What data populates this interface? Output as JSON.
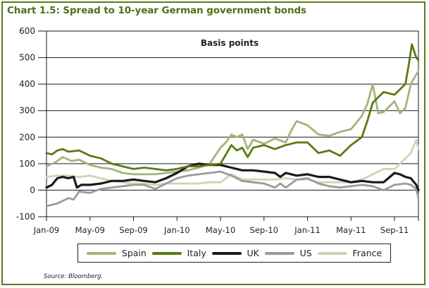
{
  "chart_data": {
    "type": "line",
    "title": "Chart 1.5: Spread to 10-year German government bonds",
    "annotation": "Basis points",
    "xlabel": "",
    "ylabel": "Basis points",
    "ylim": [
      -100,
      600
    ],
    "yticks": [
      600,
      500,
      400,
      300,
      200,
      100,
      0,
      -100
    ],
    "ytick_labels": [
      "600",
      "500",
      "400",
      "300",
      "200",
      "100",
      "0",
      "-100"
    ],
    "x_unit": "months since Jan-09",
    "xlim": [
      0,
      34.2
    ],
    "xticks": [
      0,
      4,
      8,
      12,
      16,
      20,
      24,
      28,
      32
    ],
    "xtick_labels": [
      "Jan-09",
      "May-09",
      "Sep-09",
      "Jan-10",
      "May-10",
      "Sep-10",
      "Jan-11",
      "May-11",
      "Sep-11"
    ],
    "grid": "horizontal",
    "legend_position": "bottom",
    "source": "Source: Bloomberg.",
    "series": [
      {
        "name": "Spain",
        "color": "#a3b47a",
        "x": [
          0,
          0.8,
          1.5,
          2.3,
          3,
          4,
          5,
          6,
          7,
          8,
          9,
          10,
          11,
          12,
          13,
          14,
          15,
          16,
          16.5,
          17,
          17.5,
          18,
          18.5,
          19,
          20,
          21,
          22,
          22.5,
          23,
          24,
          25,
          26,
          27,
          28,
          29,
          29.5,
          30,
          30.5,
          31,
          32,
          32.5,
          33,
          33.5,
          34.2
        ],
        "values": [
          90,
          105,
          125,
          110,
          115,
          95,
          85,
          80,
          65,
          60,
          60,
          60,
          65,
          70,
          75,
          85,
          100,
          160,
          180,
          210,
          200,
          210,
          155,
          190,
          175,
          195,
          180,
          225,
          260,
          245,
          210,
          205,
          220,
          230,
          280,
          325,
          400,
          290,
          295,
          335,
          290,
          310,
          400,
          450
        ]
      },
      {
        "name": "Italy",
        "color": "#5a7a12",
        "x": [
          0,
          0.5,
          1,
          1.5,
          2,
          3,
          4,
          5,
          6,
          7,
          8,
          9,
          10,
          11,
          12,
          13,
          14,
          15,
          16,
          17,
          17.5,
          18,
          18.5,
          19,
          20,
          21,
          22,
          23,
          24,
          25,
          26,
          27,
          28,
          29,
          29.5,
          30,
          31,
          32,
          33,
          33.3,
          33.6,
          34,
          34.2
        ],
        "values": [
          140,
          135,
          150,
          155,
          145,
          150,
          130,
          120,
          100,
          90,
          80,
          85,
          80,
          75,
          80,
          90,
          90,
          95,
          100,
          170,
          150,
          160,
          125,
          160,
          170,
          155,
          170,
          180,
          180,
          140,
          150,
          130,
          170,
          200,
          260,
          330,
          370,
          360,
          400,
          470,
          550,
          500,
          490
        ]
      },
      {
        "name": "UK",
        "color": "#1a1a1a",
        "x": [
          0,
          0.5,
          1,
          1.5,
          2,
          2.5,
          2.8,
          3.2,
          4,
          5,
          6,
          7,
          8,
          9,
          10,
          11,
          12,
          13,
          14,
          15,
          16,
          17,
          18,
          19,
          20,
          21,
          21.5,
          22,
          23,
          24,
          25,
          26,
          27,
          28,
          29,
          30,
          31,
          32,
          32.5,
          33,
          33.5,
          34,
          34.2
        ],
        "values": [
          10,
          20,
          45,
          50,
          45,
          50,
          10,
          20,
          20,
          25,
          35,
          35,
          40,
          35,
          30,
          45,
          65,
          90,
          100,
          95,
          95,
          85,
          75,
          75,
          70,
          65,
          50,
          65,
          55,
          60,
          50,
          50,
          40,
          30,
          35,
          30,
          30,
          65,
          60,
          50,
          45,
          20,
          0
        ]
      },
      {
        "name": "US",
        "color": "#9a9a9a",
        "x": [
          0,
          1,
          2,
          2.5,
          3,
          4,
          5,
          6,
          7,
          8,
          9,
          10,
          11,
          12,
          13,
          14,
          15,
          16,
          17,
          18,
          19,
          20,
          21,
          21.5,
          22,
          23,
          24,
          25,
          26,
          27,
          28,
          29,
          30,
          31,
          32,
          33,
          33.5,
          34,
          34.2
        ],
        "values": [
          -60,
          -50,
          -30,
          -35,
          -5,
          -10,
          5,
          10,
          15,
          20,
          20,
          5,
          25,
          45,
          55,
          60,
          65,
          70,
          55,
          35,
          30,
          25,
          10,
          25,
          10,
          40,
          45,
          25,
          15,
          10,
          15,
          20,
          15,
          0,
          20,
          25,
          20,
          5,
          -30
        ]
      },
      {
        "name": "France",
        "color": "#ccd6b4",
        "x": [
          0,
          1,
          2,
          3,
          4,
          5,
          6,
          7,
          8,
          9,
          10,
          11,
          12,
          13,
          14,
          15,
          16,
          17,
          18,
          19,
          20,
          21,
          22,
          23,
          24,
          25,
          26,
          27,
          28,
          29,
          30,
          31,
          32,
          32.5,
          33,
          33.5,
          34,
          34.2
        ],
        "values": [
          50,
          55,
          55,
          50,
          55,
          45,
          35,
          30,
          25,
          25,
          20,
          25,
          25,
          25,
          25,
          30,
          30,
          60,
          40,
          40,
          40,
          40,
          45,
          40,
          40,
          30,
          30,
          30,
          30,
          40,
          60,
          80,
          80,
          100,
          120,
          140,
          190,
          155
        ]
      }
    ]
  }
}
